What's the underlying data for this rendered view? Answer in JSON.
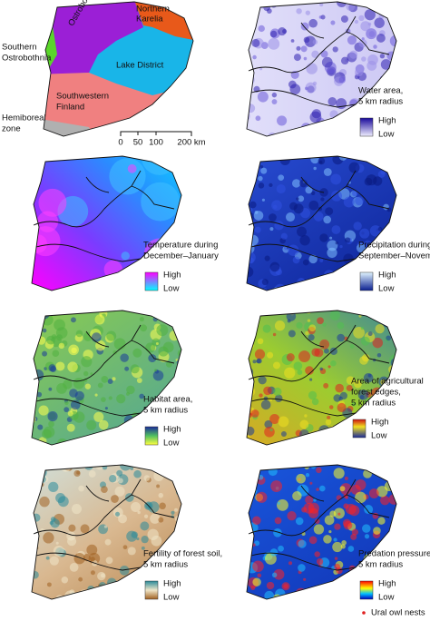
{
  "overview": {
    "labels": {
      "southern_ostrobothnia": [
        "Southern",
        "Ostrobothnia"
      ],
      "ostrobothnia": "Ostrobothnia",
      "northern_karelia": [
        "Northern",
        "Karelia"
      ],
      "lake_district": "Lake District",
      "southwestern_finland": [
        "Southwestern",
        "Finland"
      ],
      "hemiboreal": [
        "Hemiboreal",
        "zone"
      ]
    },
    "scale_labels": [
      "0",
      "50",
      "100",
      "200 km"
    ]
  },
  "panels": [
    {
      "caption": [
        "Water area,",
        "5 km radius"
      ],
      "legend": [
        "High",
        "Low"
      ]
    },
    {
      "caption": [
        "Temperature during",
        "December–January"
      ],
      "legend": [
        "High",
        "Low"
      ]
    },
    {
      "caption": [
        "Precipitation during",
        "September–November"
      ],
      "legend": [
        "High",
        "Low"
      ]
    },
    {
      "caption": [
        "Habitat area,",
        "5 km radius"
      ],
      "legend": [
        "High",
        "Low"
      ]
    },
    {
      "caption": [
        "Area of agricultural",
        "forest edges,",
        "5 km radius"
      ],
      "legend": [
        "High",
        "Low"
      ]
    },
    {
      "caption": [
        "Fertility of forest soil,",
        "5 km radius"
      ],
      "legend": [
        "High",
        "Low"
      ]
    },
    {
      "caption": [
        "Predation pressure,",
        "5 km radius"
      ],
      "legend": [
        "High",
        "Low"
      ],
      "nests": "Ural owl nests"
    }
  ]
}
